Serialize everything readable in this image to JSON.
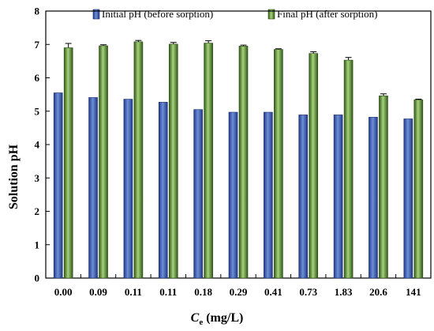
{
  "chart_data": {
    "type": "bar",
    "categories": [
      "0.00",
      "0.09",
      "0.11",
      "0.11",
      "0.18",
      "0.29",
      "0.41",
      "0.73",
      "1.83",
      "20.6",
      "141"
    ],
    "series": [
      {
        "name": "Initial pH (before sorption)",
        "values": [
          5.55,
          5.41,
          5.36,
          5.27,
          5.05,
          4.97,
          4.97,
          4.89,
          4.89,
          4.82,
          4.77
        ],
        "errors": [
          0,
          0,
          0,
          0,
          0,
          0,
          0,
          0,
          0,
          0,
          0
        ],
        "color": "#3550a4"
      },
      {
        "name": "Final pH (after sorption)",
        "values": [
          6.9,
          6.96,
          7.08,
          7.01,
          7.04,
          6.95,
          6.85,
          6.73,
          6.53,
          5.46,
          5.34
        ],
        "errors": [
          0.13,
          0.03,
          0.04,
          0.05,
          0.07,
          0.03,
          0.02,
          0.05,
          0.08,
          0.06,
          0.02
        ],
        "color": "#4f7c2c"
      }
    ],
    "title": "",
    "ylabel": "Solution pH",
    "xlabel_main": "C",
    "xlabel_sub": "e",
    "xlabel_unit": " (mg/L)",
    "ylim": [
      0,
      8
    ],
    "yticks": [
      0,
      1,
      2,
      3,
      4,
      5,
      6,
      7,
      8
    ],
    "grid": false,
    "legend_position": "top"
  }
}
